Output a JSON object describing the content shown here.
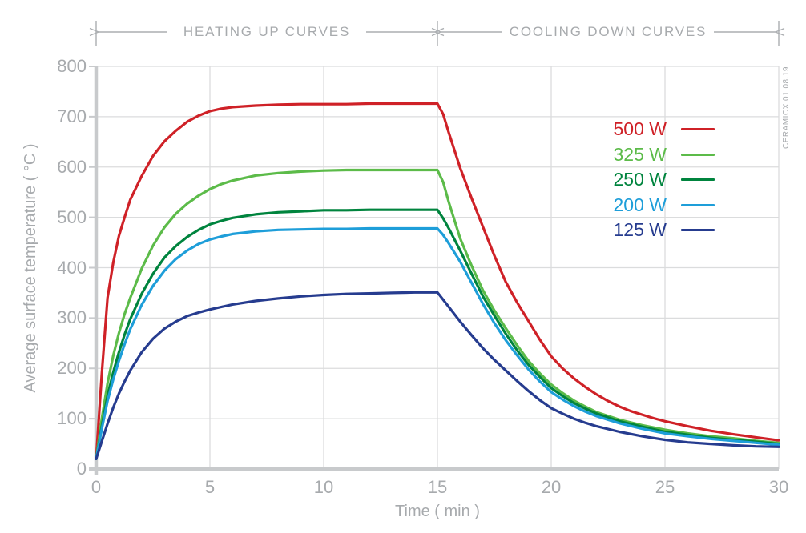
{
  "header": {
    "heating_label": "HEATING UP CURVES",
    "cooling_label": "COOLING DOWN CURVES"
  },
  "watermark": "CERAMICX 01.08.19",
  "colors": {
    "axis": "#C8CACC",
    "grid": "#DBDCDD",
    "text": "#A7AAAD",
    "annotation": "#ABAEB1"
  },
  "chart_data": {
    "type": "line",
    "title": "",
    "xlabel": "Time ( min )",
    "ylabel": "Average surface temperature ( °C )",
    "xlim": [
      0,
      30
    ],
    "ylim": [
      0,
      800
    ],
    "xticks": [
      0,
      5,
      10,
      15,
      20,
      25,
      30
    ],
    "yticks": [
      0,
      100,
      200,
      300,
      400,
      500,
      600,
      700,
      800
    ],
    "grid": true,
    "legend_position": "upper-right-inside",
    "annotations": [
      "HEATING UP CURVES span 0-15 min",
      "COOLING DOWN CURVES span 15-30 min"
    ],
    "series": [
      {
        "name": "500 W",
        "color": "#CF2127",
        "points": [
          [
            0,
            20
          ],
          [
            0.25,
            190
          ],
          [
            0.5,
            340
          ],
          [
            0.75,
            410
          ],
          [
            1,
            463
          ],
          [
            1.25,
            500
          ],
          [
            1.5,
            535
          ],
          [
            2,
            582
          ],
          [
            2.5,
            622
          ],
          [
            3,
            651
          ],
          [
            3.5,
            672
          ],
          [
            4,
            690
          ],
          [
            4.5,
            702
          ],
          [
            5,
            711
          ],
          [
            5.5,
            716
          ],
          [
            6,
            719
          ],
          [
            7,
            722
          ],
          [
            8,
            724
          ],
          [
            9,
            725
          ],
          [
            10,
            725
          ],
          [
            11,
            725
          ],
          [
            12,
            726
          ],
          [
            13,
            726
          ],
          [
            14,
            726
          ],
          [
            15,
            726
          ],
          [
            15.25,
            705
          ],
          [
            15.5,
            668
          ],
          [
            16,
            598
          ],
          [
            16.5,
            538
          ],
          [
            17,
            481
          ],
          [
            17.5,
            424
          ],
          [
            18,
            372
          ],
          [
            18.5,
            331
          ],
          [
            19,
            294
          ],
          [
            19.5,
            257
          ],
          [
            20,
            224
          ],
          [
            20.5,
            200
          ],
          [
            21,
            180
          ],
          [
            21.5,
            163
          ],
          [
            22,
            148
          ],
          [
            22.5,
            135
          ],
          [
            23,
            124
          ],
          [
            23.5,
            115
          ],
          [
            24,
            108
          ],
          [
            24.5,
            101
          ],
          [
            25,
            95
          ],
          [
            26,
            85
          ],
          [
            27,
            76
          ],
          [
            28,
            69
          ],
          [
            29,
            63
          ],
          [
            30,
            57
          ]
        ]
      },
      {
        "name": "325 W",
        "color": "#5CBB49",
        "points": [
          [
            0,
            20
          ],
          [
            0.25,
            100
          ],
          [
            0.5,
            170
          ],
          [
            0.75,
            225
          ],
          [
            1,
            270
          ],
          [
            1.25,
            308
          ],
          [
            1.5,
            340
          ],
          [
            2,
            398
          ],
          [
            2.5,
            444
          ],
          [
            3,
            480
          ],
          [
            3.5,
            507
          ],
          [
            4,
            527
          ],
          [
            4.5,
            543
          ],
          [
            5,
            556
          ],
          [
            5.5,
            566
          ],
          [
            6,
            573
          ],
          [
            7,
            583
          ],
          [
            8,
            588
          ],
          [
            9,
            591
          ],
          [
            10,
            593
          ],
          [
            11,
            594
          ],
          [
            12,
            594
          ],
          [
            13,
            594
          ],
          [
            14,
            594
          ],
          [
            15,
            594
          ],
          [
            15.25,
            570
          ],
          [
            15.5,
            530
          ],
          [
            16,
            458
          ],
          [
            16.5,
            404
          ],
          [
            17,
            355
          ],
          [
            17.5,
            315
          ],
          [
            18,
            280
          ],
          [
            18.5,
            246
          ],
          [
            19,
            215
          ],
          [
            19.5,
            190
          ],
          [
            20,
            168
          ],
          [
            20.5,
            151
          ],
          [
            21,
            136
          ],
          [
            21.5,
            124
          ],
          [
            22,
            113
          ],
          [
            23,
            98
          ],
          [
            24,
            87
          ],
          [
            25,
            78
          ],
          [
            26,
            71
          ],
          [
            27,
            65
          ],
          [
            28,
            61
          ],
          [
            29,
            56
          ],
          [
            30,
            52
          ]
        ]
      },
      {
        "name": "250 W",
        "color": "#00843E",
        "points": [
          [
            0,
            20
          ],
          [
            0.25,
            85
          ],
          [
            0.5,
            145
          ],
          [
            0.75,
            192
          ],
          [
            1,
            232
          ],
          [
            1.25,
            267
          ],
          [
            1.5,
            298
          ],
          [
            2,
            348
          ],
          [
            2.5,
            388
          ],
          [
            3,
            420
          ],
          [
            3.5,
            443
          ],
          [
            4,
            461
          ],
          [
            4.5,
            475
          ],
          [
            5,
            486
          ],
          [
            5.5,
            493
          ],
          [
            6,
            499
          ],
          [
            7,
            506
          ],
          [
            8,
            510
          ],
          [
            9,
            512
          ],
          [
            10,
            514
          ],
          [
            11,
            514
          ],
          [
            12,
            515
          ],
          [
            13,
            515
          ],
          [
            14,
            515
          ],
          [
            15,
            515
          ],
          [
            15.25,
            498
          ],
          [
            15.5,
            478
          ],
          [
            16,
            434
          ],
          [
            16.5,
            388
          ],
          [
            17,
            343
          ],
          [
            17.5,
            305
          ],
          [
            18,
            269
          ],
          [
            18.5,
            236
          ],
          [
            19,
            207
          ],
          [
            19.5,
            183
          ],
          [
            20,
            161
          ],
          [
            20.5,
            145
          ],
          [
            21,
            131
          ],
          [
            21.5,
            120
          ],
          [
            22,
            110
          ],
          [
            23,
            95
          ],
          [
            24,
            84
          ],
          [
            25,
            74
          ],
          [
            26,
            68
          ],
          [
            27,
            62
          ],
          [
            28,
            58
          ],
          [
            29,
            54
          ],
          [
            30,
            50
          ]
        ]
      },
      {
        "name": "200 W",
        "color": "#1E9ED9",
        "points": [
          [
            0,
            20
          ],
          [
            0.25,
            80
          ],
          [
            0.5,
            135
          ],
          [
            0.75,
            178
          ],
          [
            1,
            215
          ],
          [
            1.25,
            248
          ],
          [
            1.5,
            278
          ],
          [
            2,
            326
          ],
          [
            2.5,
            364
          ],
          [
            3,
            394
          ],
          [
            3.5,
            417
          ],
          [
            4,
            434
          ],
          [
            4.5,
            447
          ],
          [
            5,
            456
          ],
          [
            5.5,
            462
          ],
          [
            6,
            467
          ],
          [
            7,
            472
          ],
          [
            8,
            475
          ],
          [
            9,
            476
          ],
          [
            10,
            477
          ],
          [
            11,
            477
          ],
          [
            12,
            478
          ],
          [
            13,
            478
          ],
          [
            14,
            478
          ],
          [
            15,
            478
          ],
          [
            15.25,
            465
          ],
          [
            15.5,
            448
          ],
          [
            16,
            412
          ],
          [
            16.5,
            370
          ],
          [
            17,
            328
          ],
          [
            17.5,
            290
          ],
          [
            18,
            256
          ],
          [
            18.5,
            226
          ],
          [
            19,
            198
          ],
          [
            19.5,
            174
          ],
          [
            20,
            153
          ],
          [
            20.5,
            138
          ],
          [
            21,
            125
          ],
          [
            21.5,
            114
          ],
          [
            22,
            105
          ],
          [
            23,
            91
          ],
          [
            24,
            80
          ],
          [
            25,
            71
          ],
          [
            26,
            65
          ],
          [
            27,
            60
          ],
          [
            28,
            56
          ],
          [
            29,
            52
          ],
          [
            30,
            48
          ]
        ]
      },
      {
        "name": "125 W",
        "color": "#263C8F",
        "points": [
          [
            0,
            20
          ],
          [
            0.25,
            55
          ],
          [
            0.5,
            90
          ],
          [
            0.75,
            122
          ],
          [
            1,
            150
          ],
          [
            1.25,
            174
          ],
          [
            1.5,
            196
          ],
          [
            2,
            232
          ],
          [
            2.5,
            259
          ],
          [
            3,
            279
          ],
          [
            3.5,
            293
          ],
          [
            4,
            304
          ],
          [
            4.5,
            311
          ],
          [
            5,
            317
          ],
          [
            5.5,
            322
          ],
          [
            6,
            327
          ],
          [
            7,
            334
          ],
          [
            8,
            339
          ],
          [
            9,
            343
          ],
          [
            10,
            346
          ],
          [
            11,
            348
          ],
          [
            12,
            349
          ],
          [
            13,
            350
          ],
          [
            14,
            351
          ],
          [
            15,
            351
          ],
          [
            15.5,
            322
          ],
          [
            16,
            293
          ],
          [
            16.5,
            266
          ],
          [
            17,
            240
          ],
          [
            17.5,
            217
          ],
          [
            18,
            196
          ],
          [
            18.5,
            175
          ],
          [
            19,
            155
          ],
          [
            19.5,
            137
          ],
          [
            20,
            121
          ],
          [
            20.5,
            110
          ],
          [
            21,
            100
          ],
          [
            21.5,
            92
          ],
          [
            22,
            85
          ],
          [
            23,
            74
          ],
          [
            24,
            65
          ],
          [
            25,
            58
          ],
          [
            26,
            53
          ],
          [
            27,
            50
          ],
          [
            28,
            47
          ],
          [
            29,
            45
          ],
          [
            30,
            44
          ]
        ]
      }
    ]
  }
}
